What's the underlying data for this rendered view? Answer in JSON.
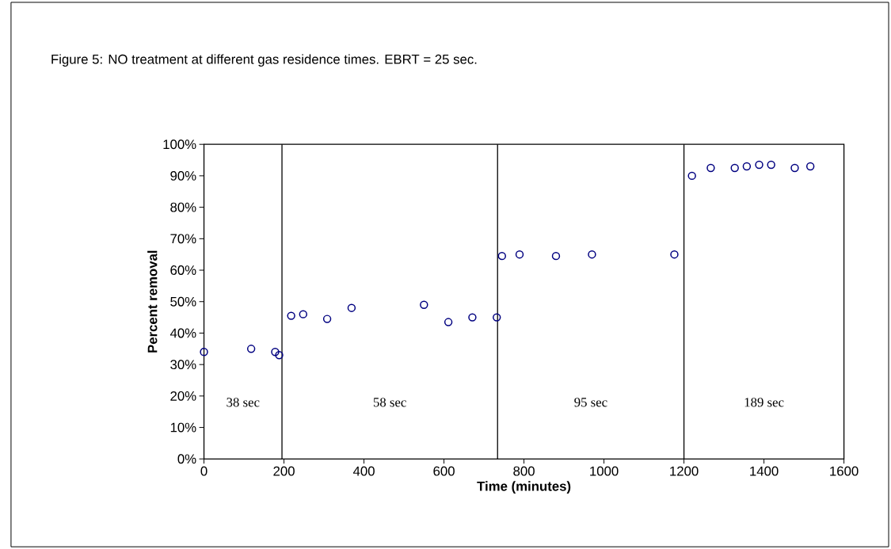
{
  "chart_data": {
    "type": "scatter",
    "title": "Figure 5:  NO treatment at different gas residence times. EBRT = 25 sec.",
    "xlabel": "Time (minutes)",
    "ylabel": "Percent removal",
    "x": [
      0,
      118,
      178,
      188,
      218,
      248,
      308,
      369,
      550,
      611,
      671,
      732,
      745,
      789,
      880,
      970,
      1176,
      1220,
      1267,
      1327,
      1357,
      1388,
      1418,
      1477,
      1516
    ],
    "series": [
      {
        "color": "#000080",
        "values": [
          34,
          35,
          34,
          33,
          45.5,
          46,
          44.5,
          48,
          49,
          43.5,
          45,
          45,
          64.5,
          65,
          64.5,
          65,
          65,
          90,
          92.5,
          92.5,
          93,
          93.5,
          93.5,
          92.5,
          93
        ]
      }
    ],
    "marker": "circle",
    "xlim": [
      0,
      1600
    ],
    "xticks": [
      0,
      200,
      400,
      600,
      800,
      1000,
      1200,
      1400,
      1600
    ],
    "ylim": [
      0,
      100
    ],
    "yticks": [
      {
        "value": 0,
        "label": "0%"
      },
      {
        "value": 10,
        "label": "10%"
      },
      {
        "value": 20,
        "label": "20%"
      },
      {
        "value": 30,
        "label": "30%"
      },
      {
        "value": 40,
        "label": "40%"
      },
      {
        "value": 50,
        "label": "50%"
      },
      {
        "value": 60,
        "label": "60%"
      },
      {
        "value": 70,
        "label": "70%"
      },
      {
        "value": 80,
        "label": "80%"
      },
      {
        "value": 90,
        "label": "90%"
      },
      {
        "value": 100,
        "label": "100%"
      }
    ],
    "ref_lines": [
      {
        "axis": "x",
        "value": 195,
        "color": "#000000"
      },
      {
        "axis": "x",
        "value": 734,
        "color": "#000000"
      },
      {
        "axis": "x",
        "value": 1200,
        "color": "#000000"
      }
    ],
    "annotations": [
      "38 sec",
      "58 sec",
      "95 sec",
      "189 sec"
    ]
  }
}
